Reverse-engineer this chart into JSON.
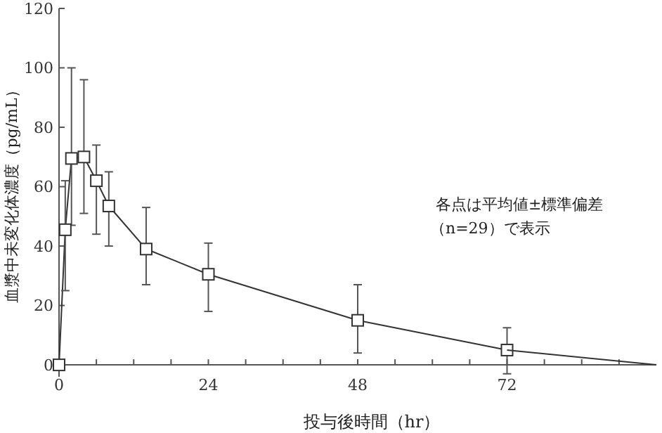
{
  "chart_data": {
    "type": "line",
    "xlabel": "投与後時間（hr）",
    "ylabel": "血漿中未変化体濃度（pg/mL）",
    "annotations": [
      "各点は平均値±標準偏差",
      "（n=29）で表示"
    ],
    "xlim": [
      0,
      96
    ],
    "ylim": [
      -4,
      120
    ],
    "xticks": [
      0,
      {
        "value": 6,
        "label": null
      },
      {
        "value": 12,
        "label": null
      },
      {
        "value": 18,
        "label": null
      },
      24,
      {
        "value": 30,
        "label": null
      },
      {
        "value": 36,
        "label": null
      },
      {
        "value": 42,
        "label": null
      },
      48,
      {
        "value": 54,
        "label": null
      },
      {
        "value": 60,
        "label": null
      },
      {
        "value": 66,
        "label": null
      },
      72,
      {
        "value": 78,
        "label": null
      },
      {
        "value": 84,
        "label": null
      },
      {
        "value": 90,
        "label": null
      }
    ],
    "yticks": [
      0,
      20,
      40,
      60,
      80,
      100,
      120
    ],
    "grid": false,
    "series": [
      {
        "color": "#333333",
        "marker": "square",
        "x": [
          0,
          1,
          2,
          4,
          6,
          8,
          14,
          24,
          48,
          72
        ],
        "values": [
          0,
          45.5,
          69.5,
          70,
          62,
          53.5,
          39,
          30.5,
          15,
          5
        ],
        "errors": [
          null,
          [
            25,
            62
          ],
          [
            47,
            100
          ],
          [
            51,
            96
          ],
          [
            44,
            74
          ],
          [
            40,
            65
          ],
          [
            27,
            53
          ],
          [
            18,
            41
          ],
          [
            4,
            27
          ],
          [
            -3,
            12.5
          ]
        ]
      },
      {
        "color": "#333333",
        "marker": "none",
        "x": [
          72,
          96
        ],
        "values": [
          5,
          0
        ]
      }
    ]
  }
}
